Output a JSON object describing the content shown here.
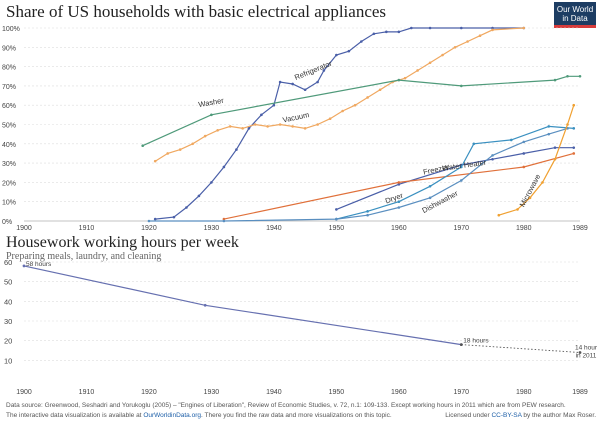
{
  "chart_data": [
    {
      "type": "line",
      "title": "Share of US households with basic electrical appliances",
      "xlim": [
        1900,
        1989
      ],
      "ylim": [
        0,
        100
      ],
      "x_ticks": [
        "1900",
        "1910",
        "1920",
        "1930",
        "1940",
        "1950",
        "1960",
        "1970",
        "1980",
        "1989"
      ],
      "y_ticks": [
        "0%",
        "10%",
        "20%",
        "30%",
        "40%",
        "50%",
        "60%",
        "70%",
        "80%",
        "90%",
        "100%"
      ],
      "grid": true,
      "series": [
        {
          "name": "Refrigerator",
          "color": "#4a5fa8",
          "points": [
            [
              1921,
              1
            ],
            [
              1924,
              2
            ],
            [
              1926,
              7
            ],
            [
              1928,
              13
            ],
            [
              1930,
              20
            ],
            [
              1932,
              28
            ],
            [
              1934,
              37
            ],
            [
              1936,
              48
            ],
            [
              1938,
              55
            ],
            [
              1940,
              60
            ],
            [
              1941,
              72
            ],
            [
              1943,
              71
            ],
            [
              1945,
              68
            ],
            [
              1947,
              72
            ],
            [
              1948,
              78
            ],
            [
              1950,
              86
            ],
            [
              1952,
              88
            ],
            [
              1954,
              93
            ],
            [
              1956,
              97
            ],
            [
              1958,
              98
            ],
            [
              1960,
              98
            ],
            [
              1962,
              100
            ],
            [
              1965,
              100
            ],
            [
              1970,
              100
            ],
            [
              1975,
              100
            ],
            [
              1980,
              100
            ]
          ]
        },
        {
          "name": "Vacuum",
          "color": "#f0a860",
          "points": [
            [
              1921,
              31
            ],
            [
              1923,
              35
            ],
            [
              1925,
              37
            ],
            [
              1927,
              40
            ],
            [
              1929,
              44
            ],
            [
              1931,
              47
            ],
            [
              1933,
              49
            ],
            [
              1935,
              48
            ],
            [
              1937,
              50
            ],
            [
              1939,
              49
            ],
            [
              1941,
              50
            ],
            [
              1943,
              49
            ],
            [
              1945,
              48
            ],
            [
              1947,
              50
            ],
            [
              1949,
              53
            ],
            [
              1951,
              57
            ],
            [
              1953,
              60
            ],
            [
              1955,
              64
            ],
            [
              1957,
              68
            ],
            [
              1959,
              72
            ],
            [
              1961,
              74
            ],
            [
              1963,
              78
            ],
            [
              1965,
              82
            ],
            [
              1967,
              86
            ],
            [
              1969,
              90
            ],
            [
              1971,
              93
            ],
            [
              1973,
              96
            ],
            [
              1975,
              99
            ],
            [
              1980,
              100
            ]
          ]
        },
        {
          "name": "Washer",
          "color": "#4f9a7a",
          "points": [
            [
              1919,
              39
            ],
            [
              1930,
              55
            ],
            [
              1960,
              73
            ],
            [
              1970,
              70
            ],
            [
              1985,
              73
            ],
            [
              1987,
              75
            ],
            [
              1989,
              75
            ]
          ]
        },
        {
          "name": "Freezer",
          "color": "#4a5fa8",
          "points": [
            [
              1950,
              6
            ],
            [
              1960,
              19
            ],
            [
              1970,
              29
            ],
            [
              1975,
              32
            ],
            [
              1980,
              35
            ],
            [
              1985,
              38
            ],
            [
              1988,
              38
            ]
          ]
        },
        {
          "name": "Water Heater",
          "color": "#e0703a",
          "points": [
            [
              1932,
              1
            ],
            [
              1960,
              20
            ],
            [
              1980,
              28
            ],
            [
              1988,
              35
            ]
          ]
        },
        {
          "name": "Dryer",
          "color": "#3a90c0",
          "points": [
            [
              1950,
              1
            ],
            [
              1955,
              5
            ],
            [
              1960,
              10
            ],
            [
              1965,
              18
            ],
            [
              1970,
              28
            ],
            [
              1972,
              40
            ],
            [
              1978,
              42
            ],
            [
              1984,
              49
            ],
            [
              1988,
              48
            ]
          ]
        },
        {
          "name": "Dishwasher",
          "color": "#5a8fc0",
          "points": [
            [
              1920,
              0
            ],
            [
              1932,
              0
            ],
            [
              1950,
              1
            ],
            [
              1955,
              3
            ],
            [
              1960,
              7
            ],
            [
              1965,
              12
            ],
            [
              1970,
              21
            ],
            [
              1975,
              34
            ],
            [
              1980,
              41
            ],
            [
              1984,
              45
            ],
            [
              1987,
              48
            ]
          ]
        },
        {
          "name": "Microwave",
          "color": "#f0a030",
          "points": [
            [
              1976,
              3
            ],
            [
              1979,
              6
            ],
            [
              1981,
              12
            ],
            [
              1983,
              20
            ],
            [
              1985,
              32
            ],
            [
              1987,
              50
            ],
            [
              1988,
              60
            ]
          ]
        }
      ]
    },
    {
      "type": "line",
      "title": "Housework working hours per week",
      "subtitle": "Preparing meals, laundry, and cleaning",
      "xlim": [
        1900,
        1989
      ],
      "ylim": [
        0,
        60
      ],
      "x_ticks": [
        "1900",
        "1910",
        "1920",
        "1930",
        "1940",
        "1950",
        "1960",
        "1970",
        "1980",
        "1989"
      ],
      "y_ticks": [
        "10",
        "20",
        "30",
        "40",
        "50",
        "60"
      ],
      "series": [
        {
          "name": "Housework hours",
          "color": "#6670b0",
          "points": [
            [
              1900,
              58
            ],
            [
              1929,
              38
            ],
            [
              1970,
              18
            ]
          ]
        },
        {
          "name": "Housework hours (2011)",
          "color": "#555555",
          "dashed": true,
          "points": [
            [
              1970,
              18
            ],
            [
              1989,
              14
            ]
          ]
        }
      ],
      "annotations": [
        {
          "x": 1900,
          "y": 58,
          "text": "58 hours"
        },
        {
          "x": 1970,
          "y": 18,
          "text": "18 hours"
        },
        {
          "x": 1989,
          "y": 14,
          "text": "14 hour in 2011"
        }
      ]
    }
  ],
  "logo": {
    "line1": "Our World",
    "line2": "in Data"
  },
  "footer": {
    "line1": "Data source: Greenwood, Seshadri and Yorukoglu (2005) – \"Engines of Liberation\", Review of Economic Studies, v. 72, n.1: 109-133. Except working hours in 2011 which are from PEW research.",
    "line2a": "The interactive data visualization is available at",
    "line2_link": "OurWorldinData.org",
    "line2b": ". There you find the raw data and more visualizations on this topic.",
    "line3a": "Licensed under",
    "line3_link": "CC-BY-SA",
    "line3b": "by the author Max Roser."
  }
}
